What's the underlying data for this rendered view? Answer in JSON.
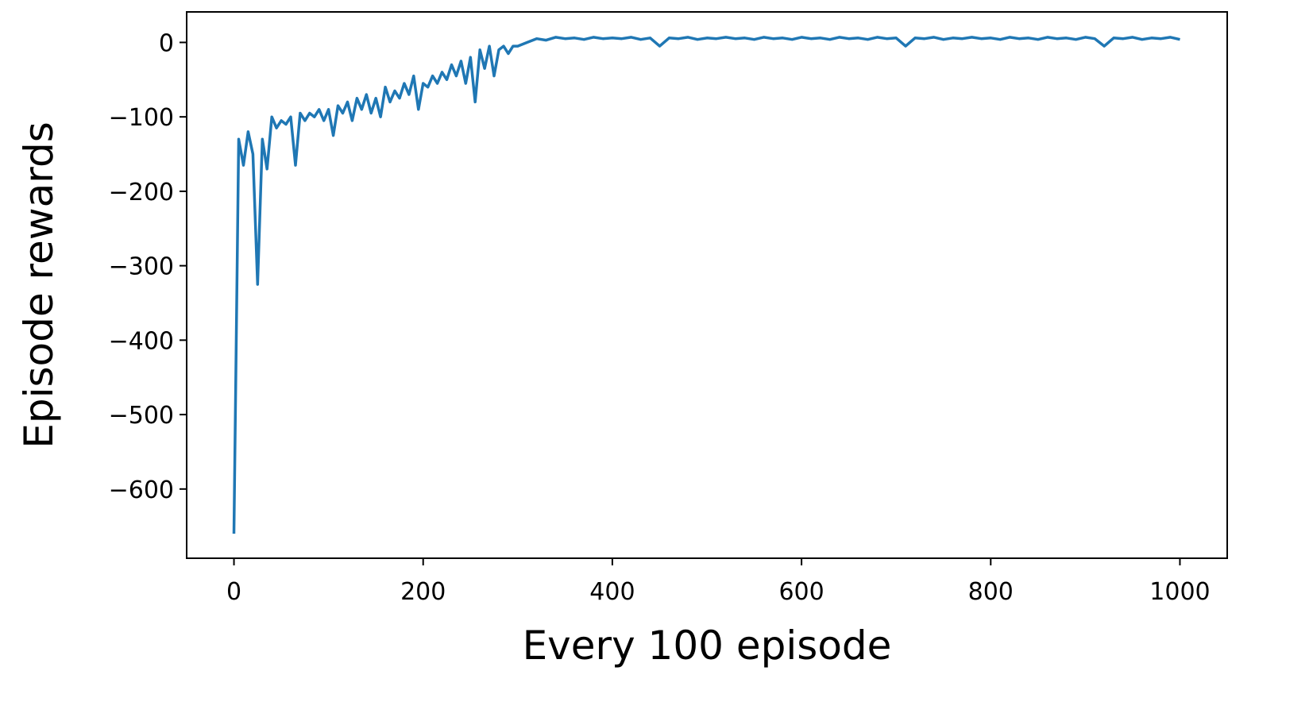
{
  "chart_data": {
    "type": "line",
    "xlabel": "Every 100 episode",
    "ylabel": "Episode rewards",
    "xlim": [
      -50,
      1050
    ],
    "ylim": [
      -693,
      41
    ],
    "xticks": [
      0,
      200,
      400,
      600,
      800,
      1000
    ],
    "yticks": [
      {
        "value": -600,
        "label": "−600"
      },
      {
        "value": -500,
        "label": "−500"
      },
      {
        "value": -400,
        "label": "−400"
      },
      {
        "value": -300,
        "label": "−300"
      },
      {
        "value": -200,
        "label": "−200"
      },
      {
        "value": -100,
        "label": "−100"
      },
      0
    ],
    "grid": false,
    "series": [
      {
        "color": "#1f77b4",
        "x": [
          0,
          5,
          10,
          15,
          20,
          25,
          30,
          35,
          40,
          45,
          50,
          55,
          60,
          65,
          70,
          75,
          80,
          85,
          90,
          95,
          100,
          105,
          110,
          115,
          120,
          125,
          130,
          135,
          140,
          145,
          150,
          155,
          160,
          165,
          170,
          175,
          180,
          185,
          190,
          195,
          200,
          205,
          210,
          215,
          220,
          225,
          230,
          235,
          240,
          245,
          250,
          255,
          260,
          265,
          270,
          275,
          280,
          285,
          290,
          295,
          300,
          310,
          320,
          330,
          340,
          350,
          360,
          370,
          380,
          390,
          400,
          410,
          420,
          430,
          440,
          450,
          460,
          470,
          480,
          490,
          500,
          510,
          520,
          530,
          540,
          550,
          560,
          570,
          580,
          590,
          600,
          610,
          620,
          630,
          640,
          650,
          660,
          670,
          680,
          690,
          700,
          710,
          720,
          730,
          740,
          750,
          760,
          770,
          780,
          790,
          800,
          810,
          820,
          830,
          840,
          850,
          860,
          870,
          880,
          890,
          900,
          910,
          920,
          930,
          940,
          950,
          960,
          970,
          980,
          990,
          1000
        ],
        "values": [
          -660,
          -130,
          -165,
          -120,
          -150,
          -325,
          -130,
          -170,
          -100,
          -115,
          -105,
          -110,
          -100,
          -165,
          -95,
          -105,
          -95,
          -100,
          -90,
          -105,
          -90,
          -125,
          -85,
          -95,
          -80,
          -105,
          -75,
          -90,
          -70,
          -95,
          -75,
          -100,
          -60,
          -80,
          -65,
          -75,
          -55,
          -70,
          -45,
          -90,
          -55,
          -60,
          -45,
          -55,
          -40,
          -50,
          -30,
          -45,
          -25,
          -55,
          -20,
          -80,
          -10,
          -35,
          -5,
          -45,
          -10,
          -5,
          -15,
          -5,
          -5,
          0,
          5,
          3,
          7,
          5,
          6,
          4,
          7,
          5,
          6,
          5,
          7,
          4,
          6,
          -5,
          6,
          5,
          7,
          4,
          6,
          5,
          7,
          5,
          6,
          4,
          7,
          5,
          6,
          4,
          7,
          5,
          6,
          4,
          7,
          5,
          6,
          4,
          7,
          5,
          6,
          -5,
          6,
          5,
          7,
          4,
          6,
          5,
          7,
          5,
          6,
          4,
          7,
          5,
          6,
          4,
          7,
          5,
          6,
          4,
          7,
          5,
          -5,
          6,
          5,
          7,
          4,
          6,
          5,
          7,
          4
        ]
      }
    ]
  }
}
